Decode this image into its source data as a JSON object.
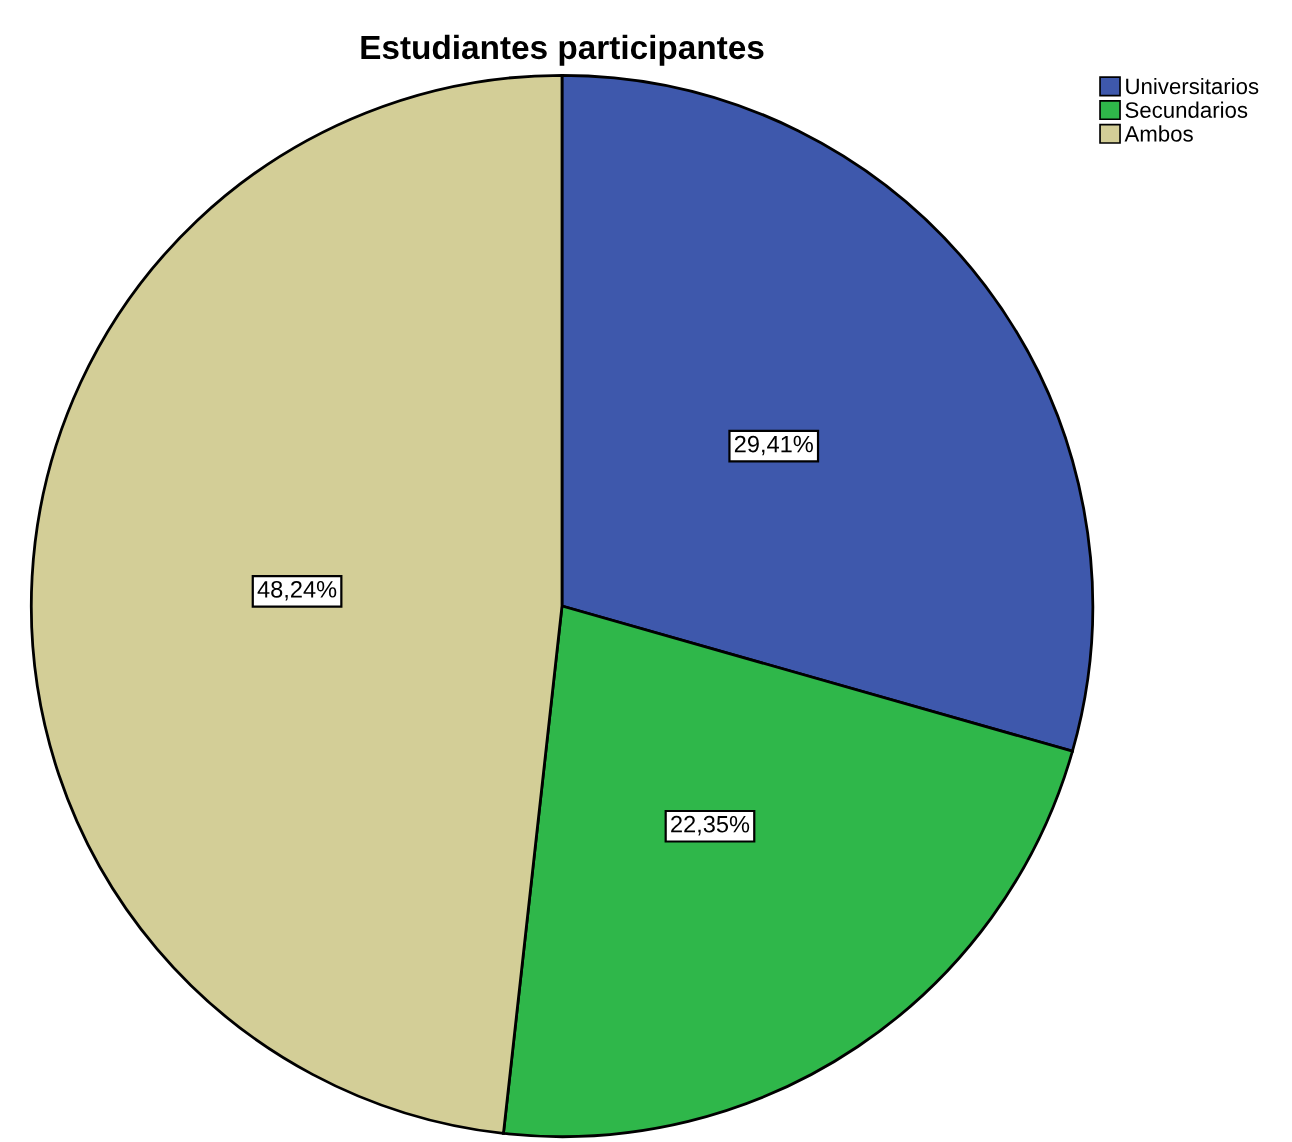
{
  "chart_data": {
    "type": "pie",
    "title": "Estudiantes participantes",
    "categories": [
      "Universitarios",
      "Secundarios",
      "Ambos"
    ],
    "values": [
      29.41,
      22.35,
      48.24
    ],
    "colors": [
      "#3e58ac",
      "#2fb74a",
      "#d3ce97"
    ],
    "value_labels": [
      "29,41%",
      "22,35%",
      "48,24%"
    ],
    "legend": "top right"
  }
}
